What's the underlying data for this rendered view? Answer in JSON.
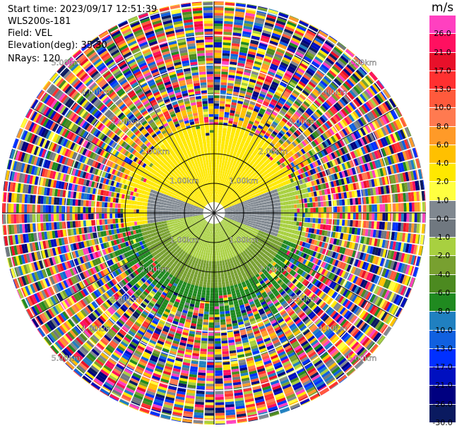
{
  "header": {
    "start_time": "Start time: 2023/09/17 12:51:39",
    "instrument": "WLS200s-181",
    "field": "Field: VEL",
    "elevation": "Elevation(deg): 35.30",
    "nrays": "NRays: 120"
  },
  "colorbar": {
    "unit": "m/s",
    "labels": [
      "26.0",
      "21.0",
      "17.0",
      "13.0",
      "10.0",
      "8.0",
      "6.0",
      "4.0",
      "2.0",
      "1.0",
      "0.0",
      "-1.0",
      "-2.0",
      "-4.0",
      "-6.0",
      "-8.0",
      "-10.0",
      "-13.0",
      "-17.0",
      "-21.0",
      "-26.0",
      "-30.0"
    ],
    "colors": [
      "#ff40c0",
      "#ff1060",
      "#e8102a",
      "#ff3030",
      "#ff5a3c",
      "#ff7a50",
      "#ff9a28",
      "#ffc000",
      "#ffe800",
      "#ffff40",
      "#808890",
      "#707880",
      "#a8d040",
      "#78a030",
      "#4c8a20",
      "#208a20",
      "#2080c0",
      "#1060e0",
      "#0030ff",
      "#0010c0",
      "#000080",
      "#0a1a60"
    ]
  },
  "chart_data": {
    "type": "heatmap",
    "subtype": "radar PPI (polar scan)",
    "field": "VEL",
    "units": "m/s",
    "rays": 120,
    "elevation_deg": 35.3,
    "range_ring_labels": [
      "1.00km",
      "2.00km",
      "3.00km",
      "4.00km",
      "5.00km"
    ],
    "spokes_deg": [
      0,
      30,
      60,
      90,
      120,
      150,
      180,
      210,
      240,
      270,
      300,
      330
    ],
    "ring_label_azimuths_deg": [
      135,
      45,
      225,
      315
    ],
    "value_by_sector": [
      {
        "sector": "north, near range",
        "value_ms": 2.0
      },
      {
        "sector": "north, mid range",
        "value_ms": 4.0
      },
      {
        "sector": "east-southeast, near range",
        "value_ms": 0.0
      },
      {
        "sector": "south, near range",
        "value_ms": -2.0
      },
      {
        "sector": "south, mid range",
        "value_ms": -6.0
      },
      {
        "sector": "outer ranges",
        "value_ms": "noise (all bins)"
      }
    ]
  }
}
